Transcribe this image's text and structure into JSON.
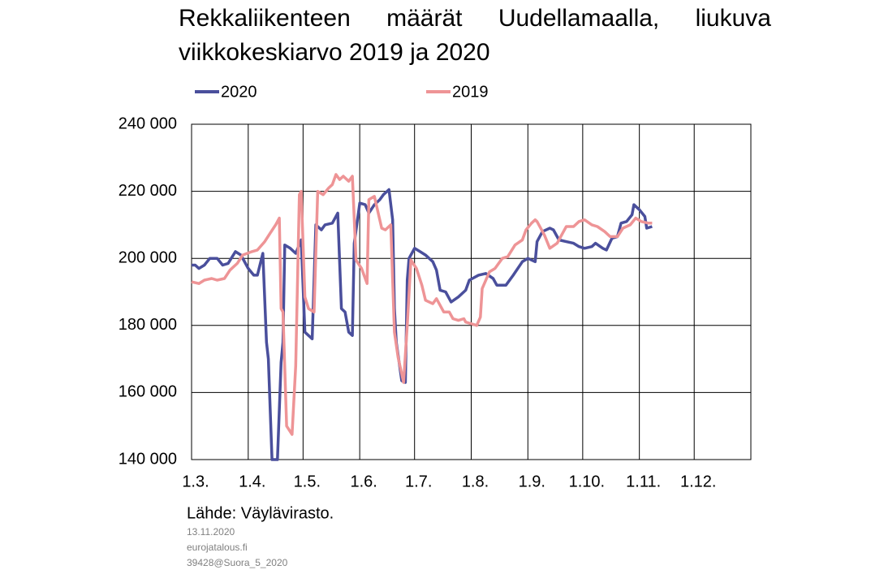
{
  "chart_data": {
    "type": "line",
    "title": "Rekkaliikenteen määrät Uudellamaalla, liukuva viikkokeskiarvo 2019 ja 2020",
    "source": "Lähde: Väylävirasto.",
    "notes": [
      "13.11.2020",
      "eurojatalous.fi",
      "39428@Suora_5_2020"
    ],
    "xlim": [
      0,
      306
    ],
    "xticks": [
      {
        "value": 0,
        "label": "1.3."
      },
      {
        "value": 31,
        "label": "1.4."
      },
      {
        "value": 61,
        "label": "1.5."
      },
      {
        "value": 92,
        "label": "1.6."
      },
      {
        "value": 122,
        "label": "1.7."
      },
      {
        "value": 153,
        "label": "1.8."
      },
      {
        "value": 184,
        "label": "1.9."
      },
      {
        "value": 214,
        "label": "1.10."
      },
      {
        "value": 245,
        "label": "1.11."
      },
      {
        "value": 275,
        "label": "1.12."
      }
    ],
    "ylim": [
      140000,
      240000
    ],
    "yticks": [
      {
        "value": 140000,
        "label": "140 000"
      },
      {
        "value": 160000,
        "label": "160 000"
      },
      {
        "value": 180000,
        "label": "180 000"
      },
      {
        "value": 200000,
        "label": "200 000"
      },
      {
        "value": 220000,
        "label": "220 000"
      },
      {
        "value": 240000,
        "label": "240 000"
      }
    ],
    "grid": true,
    "legend": "top",
    "series": [
      {
        "name": "2020",
        "color": "#4a4f9c",
        "x": [
          0,
          2,
          4,
          7,
          10,
          14,
          17,
          20,
          24,
          27,
          31,
          34,
          36,
          39,
          41,
          42,
          44,
          47,
          49,
          50,
          51,
          54,
          57,
          60,
          62,
          64,
          66,
          68,
          71,
          73,
          77,
          80,
          82,
          84,
          86,
          88,
          89,
          92,
          95,
          97,
          100,
          103,
          105,
          108,
          110,
          111,
          112,
          115,
          117,
          118,
          119,
          122,
          125,
          128,
          132,
          134,
          136,
          139,
          142,
          146,
          150,
          152,
          157,
          161,
          165,
          167,
          172,
          176,
          181,
          184,
          188,
          189,
          192,
          196,
          198,
          201,
          205,
          209,
          212,
          215,
          219,
          221,
          225,
          227,
          230,
          233,
          235,
          238,
          241,
          242,
          245,
          248,
          249,
          252
        ],
        "values": [
          198000,
          198000,
          197000,
          198000,
          200000,
          200000,
          198000,
          198500,
          202000,
          201000,
          197000,
          195000,
          195000,
          201500,
          175000,
          170000,
          140000,
          140000,
          169000,
          175000,
          204000,
          203000,
          201500,
          205500,
          178000,
          177000,
          176000,
          210000,
          208500,
          210000,
          210500,
          213500,
          185000,
          184000,
          178000,
          177000,
          204500,
          216500,
          216000,
          213500,
          216000,
          217500,
          219000,
          220500,
          211500,
          185000,
          175000,
          163500,
          163000,
          193500,
          200000,
          203000,
          202000,
          201000,
          199000,
          196500,
          190500,
          190000,
          187000,
          188500,
          190500,
          193500,
          195000,
          195500,
          194000,
          192000,
          192000,
          195000,
          199000,
          200000,
          199000,
          205000,
          208000,
          209000,
          208500,
          205500,
          205000,
          204500,
          203500,
          203000,
          203500,
          204500,
          203000,
          202500,
          206000,
          206500,
          210500,
          211000,
          213000,
          216000,
          214500,
          212500,
          209000,
          209500
        ]
      },
      {
        "name": "2019",
        "color": "#ee9496",
        "x": [
          0,
          4,
          7,
          11,
          14,
          18,
          21,
          25,
          28,
          33,
          36,
          40,
          43,
          46,
          48,
          49,
          50,
          52,
          55,
          57,
          59,
          60,
          62,
          64,
          67,
          69,
          72,
          75,
          77,
          79,
          81,
          83,
          86,
          88,
          90,
          93,
          96,
          97,
          100,
          104,
          106,
          109,
          111,
          113,
          116,
          118,
          120,
          123,
          126,
          128,
          132,
          134,
          138,
          141,
          143,
          146,
          149,
          150,
          153,
          156,
          158,
          159,
          163,
          166,
          170,
          173,
          177,
          181,
          183,
          186,
          188,
          189,
          193,
          196,
          200,
          203,
          205,
          209,
          212,
          215,
          219,
          222,
          226,
          229,
          233,
          236,
          240,
          243,
          246,
          250,
          252
        ],
        "values": [
          193000,
          192500,
          193500,
          194000,
          193500,
          194000,
          196500,
          198500,
          201000,
          202000,
          202500,
          205000,
          207500,
          210000,
          212000,
          185000,
          184000,
          150000,
          147500,
          168000,
          219000,
          220000,
          188500,
          185000,
          184000,
          220000,
          219000,
          221000,
          222000,
          225000,
          223500,
          224500,
          223000,
          224500,
          199500,
          197000,
          192500,
          217500,
          218500,
          209000,
          208500,
          210000,
          178000,
          170500,
          163000,
          180000,
          199500,
          197000,
          192000,
          187500,
          186500,
          188000,
          184000,
          184000,
          182000,
          181500,
          182000,
          181000,
          180500,
          180000,
          182500,
          191000,
          196000,
          197000,
          200000,
          200500,
          204000,
          205500,
          208500,
          210500,
          211500,
          211000,
          207000,
          203000,
          204500,
          207500,
          209500,
          209500,
          211000,
          211500,
          210000,
          209500,
          208000,
          206500,
          206500,
          209000,
          210000,
          212000,
          211000,
          210500,
          210500
        ]
      }
    ]
  }
}
